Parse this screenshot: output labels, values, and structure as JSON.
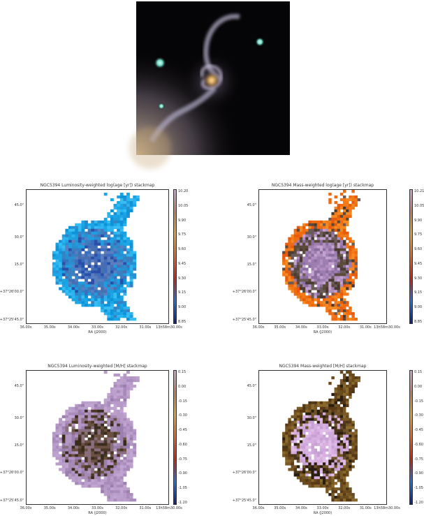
{
  "panels": [
    {
      "title": "NGC5394 Luminosity-weighted log(age [yr]) stackmap",
      "colormap": "blue",
      "ytick_labels": [
        "45.0\"",
        "30.0\"",
        "15.0\"",
        "+37°26'00.0\"",
        "+37°25'45.0\""
      ],
      "xtick_labels": [
        "36.00s",
        "35.00s",
        "34.00s",
        "33.00s",
        "32.00s",
        "31.00s",
        "13h58m30.00s"
      ],
      "xlabel": "RA (J2000)",
      "cbar_labels": [
        "10.20",
        "10.05",
        "9.90",
        "9.75",
        "9.60",
        "9.45",
        "9.30",
        "9.15",
        "9.00",
        "8.85"
      ]
    },
    {
      "title": "NGC5394 Mass-weighted log(age [yr]) stackmap",
      "colormap": "orange",
      "ytick_labels": [
        "45.0\"",
        "30.0\"",
        "15.0\"",
        "+37°26'00.0\"",
        "+37°25'45.0\""
      ],
      "xtick_labels": [
        "36.00s",
        "35.00s",
        "34.00s",
        "33.00s",
        "32.00s",
        "31.00s",
        "13h58m30.00s"
      ],
      "xlabel": "RA (J2000)",
      "cbar_labels": [
        "10.21",
        "10.05",
        "9.90",
        "9.75",
        "9.60",
        "9.45",
        "9.30",
        "9.15",
        "9.00",
        "8.85"
      ]
    },
    {
      "title": "NGC5394 Luminosity-weighted [M/H] stackmap",
      "colormap": "lilac",
      "ytick_labels": [
        "45.0\"",
        "30.0\"",
        "15.0\"",
        "+37°26'00.0\"",
        "+37°25'45.0\""
      ],
      "xtick_labels": [
        "36.00s",
        "35.00s",
        "34.00s",
        "33.00s",
        "32.00s",
        "31.00s",
        "13h58m30.00s"
      ],
      "xlabel": "RA (J2000)",
      "cbar_labels": [
        "0.15",
        "0.00",
        "-0.15",
        "-0.30",
        "-0.45",
        "-0.60",
        "-0.75",
        "-0.90",
        "-1.05",
        "-1.20"
      ]
    },
    {
      "title": "NGC5394 Mass-weighted [M/H] stackmap",
      "colormap": "brown",
      "ytick_labels": [
        "45.0\"",
        "30.0\"",
        "15.0\"",
        "+37°26'00.0\"",
        "+37°25'45.0\""
      ],
      "xtick_labels": [
        "36.00s",
        "35.00s",
        "34.00s",
        "33.00s",
        "32.00s",
        "31.00s",
        "13h58m30.00s"
      ],
      "xlabel": "RA (J2000)",
      "cbar_labels": [
        "0.15",
        "0.00",
        "-0.15",
        "-0.30",
        "-0.45",
        "-0.60",
        "-0.75",
        "-0.90",
        "-1.05",
        "-1.20"
      ]
    }
  ]
}
